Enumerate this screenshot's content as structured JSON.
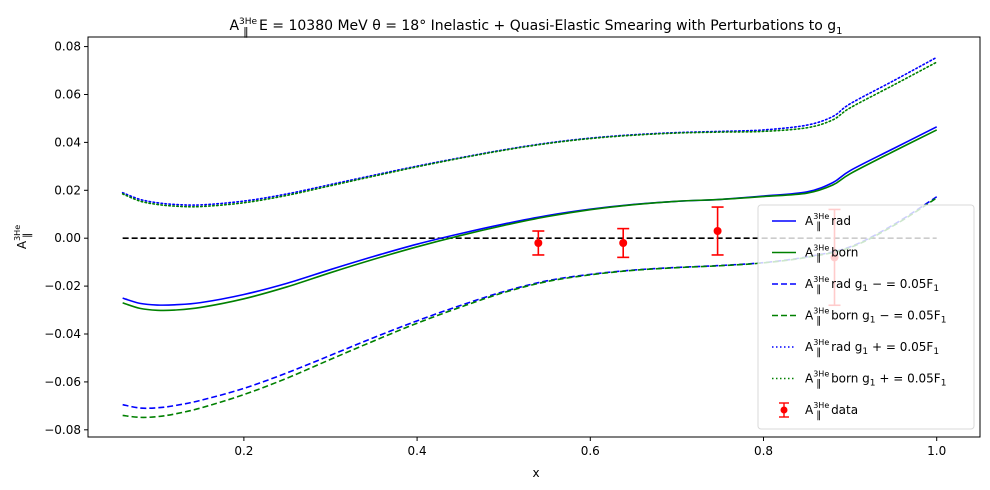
{
  "chart_data": {
    "type": "line",
    "title": {
      "base": "A",
      "sub": "‖",
      "sup": "3He",
      "rest": " E = 10380 MeV θ = 18° Inelastic + Quasi-Elastic Smearing with Perturbations to g",
      "tail_sub": "1"
    },
    "xlabel": "x",
    "ylabel": {
      "base": "A",
      "sub": "‖",
      "sup": "3He"
    },
    "xlim": [
      0.02,
      1.05
    ],
    "ylim": [
      -0.083,
      0.084
    ],
    "xticks": [
      0.2,
      0.4,
      0.6,
      0.8,
      1.0
    ],
    "xtick_labels": [
      "0.2",
      "0.4",
      "0.6",
      "0.8",
      "1.0"
    ],
    "yticks": [
      -0.08,
      -0.06,
      -0.04,
      -0.02,
      0.0,
      0.02,
      0.04,
      0.06,
      0.08
    ],
    "ytick_labels": [
      "−0.08",
      "−0.06",
      "−0.04",
      "−0.02",
      "0.00",
      "0.02",
      "0.04",
      "0.06",
      "0.08"
    ],
    "grid": false,
    "legend_position": "lower-right",
    "zero_line": {
      "x": [
        0.06,
        1.0
      ],
      "y": 0.0,
      "color": "#000000",
      "style": "dashed"
    },
    "series": [
      {
        "name": "A‖3He rad",
        "legend": {
          "base": "A",
          "sub": "‖",
          "sup": "3He",
          "text": " rad"
        },
        "color": "#0000ff",
        "style": "solid",
        "x": [
          0.06,
          0.08,
          0.1,
          0.12,
          0.15,
          0.2,
          0.25,
          0.3,
          0.35,
          0.4,
          0.45,
          0.5,
          0.55,
          0.6,
          0.65,
          0.7,
          0.75,
          0.8,
          0.85,
          0.88,
          0.9,
          0.95,
          1.0
        ],
        "y": [
          -0.025,
          -0.0272,
          -0.0279,
          -0.0278,
          -0.0269,
          -0.0235,
          -0.0188,
          -0.0131,
          -0.0076,
          -0.0025,
          0.0019,
          0.0059,
          0.0094,
          0.0121,
          0.0141,
          0.0154,
          0.0162,
          0.0176,
          0.0193,
          0.0232,
          0.0282,
          0.0374,
          0.0465
        ]
      },
      {
        "name": "A‖3He born",
        "legend": {
          "base": "A",
          "sub": "‖",
          "sup": "3He",
          "text": " born"
        },
        "color": "#008000",
        "style": "solid",
        "x": [
          0.06,
          0.08,
          0.1,
          0.12,
          0.15,
          0.2,
          0.25,
          0.3,
          0.35,
          0.4,
          0.45,
          0.5,
          0.55,
          0.6,
          0.65,
          0.7,
          0.75,
          0.8,
          0.85,
          0.88,
          0.9,
          0.95,
          1.0
        ],
        "y": [
          -0.027,
          -0.0293,
          -0.0301,
          -0.03,
          -0.0289,
          -0.0253,
          -0.0203,
          -0.0144,
          -0.0088,
          -0.0036,
          0.0011,
          0.0053,
          0.009,
          0.0119,
          0.014,
          0.0154,
          0.0162,
          0.0174,
          0.0188,
          0.0222,
          0.0269,
          0.0362,
          0.0452
        ]
      },
      {
        "name": "A‖3He rad g1−=0.05F1",
        "legend": {
          "base": "A",
          "sub": "‖",
          "sup": "3He",
          "text": " rad g",
          "text_sub": "1",
          "text2": " − = 0.05F",
          "text2_sub": "1"
        },
        "color": "#0000ff",
        "style": "dashed",
        "x": [
          0.06,
          0.08,
          0.1,
          0.12,
          0.15,
          0.2,
          0.25,
          0.3,
          0.35,
          0.4,
          0.45,
          0.5,
          0.55,
          0.6,
          0.65,
          0.7,
          0.75,
          0.8,
          0.85,
          0.9,
          0.95,
          1.0
        ],
        "y": [
          -0.0695,
          -0.0709,
          -0.0708,
          -0.0699,
          -0.0677,
          -0.0627,
          -0.0562,
          -0.0489,
          -0.0415,
          -0.0345,
          -0.0281,
          -0.0223,
          -0.0178,
          -0.0151,
          -0.0133,
          -0.0122,
          -0.0114,
          -0.0102,
          -0.0078,
          -0.0036,
          0.0056,
          0.0173
        ]
      },
      {
        "name": "A‖3He born g1−=0.05F1",
        "legend": {
          "base": "A",
          "sub": "‖",
          "sup": "3He",
          "text": " born g",
          "text_sub": "1",
          "text2": " − = 0.05F",
          "text2_sub": "1"
        },
        "color": "#008000",
        "style": "dashed",
        "x": [
          0.06,
          0.08,
          0.1,
          0.12,
          0.15,
          0.2,
          0.25,
          0.3,
          0.35,
          0.4,
          0.45,
          0.5,
          0.55,
          0.6,
          0.65,
          0.7,
          0.75,
          0.8,
          0.85,
          0.9,
          0.95,
          1.0
        ],
        "y": [
          -0.074,
          -0.0748,
          -0.0745,
          -0.0734,
          -0.0709,
          -0.0653,
          -0.0584,
          -0.0506,
          -0.0429,
          -0.0355,
          -0.0288,
          -0.0227,
          -0.0181,
          -0.0153,
          -0.0134,
          -0.0123,
          -0.0115,
          -0.0103,
          -0.008,
          -0.0039,
          0.0052,
          0.0168
        ]
      },
      {
        "name": "A‖3He rad g1+=0.05F1",
        "legend": {
          "base": "A",
          "sub": "‖",
          "sup": "3He",
          "text": " rad g",
          "text_sub": "1",
          "text2": " + = 0.05F",
          "text2_sub": "1"
        },
        "color": "#0000ff",
        "style": "dotted",
        "x": [
          0.06,
          0.08,
          0.1,
          0.12,
          0.15,
          0.2,
          0.25,
          0.3,
          0.35,
          0.4,
          0.45,
          0.5,
          0.55,
          0.6,
          0.65,
          0.7,
          0.75,
          0.8,
          0.85,
          0.88,
          0.9,
          0.95,
          1.0
        ],
        "y": [
          0.019,
          0.0162,
          0.0148,
          0.0141,
          0.0139,
          0.0155,
          0.0185,
          0.0224,
          0.0263,
          0.0301,
          0.0336,
          0.0369,
          0.0397,
          0.0418,
          0.0432,
          0.0441,
          0.0446,
          0.0452,
          0.0472,
          0.0508,
          0.0561,
          0.0657,
          0.0755
        ]
      },
      {
        "name": "A‖3He born g1+=0.05F1",
        "legend": {
          "base": "A",
          "sub": "‖",
          "sup": "3He",
          "text": " born g",
          "text_sub": "1",
          "text2": " + = 0.05F",
          "text2_sub": "1"
        },
        "color": "#008000",
        "style": "dotted",
        "x": [
          0.06,
          0.08,
          0.1,
          0.12,
          0.15,
          0.2,
          0.25,
          0.3,
          0.35,
          0.4,
          0.45,
          0.5,
          0.55,
          0.6,
          0.65,
          0.7,
          0.75,
          0.8,
          0.85,
          0.88,
          0.9,
          0.95,
          1.0
        ],
        "y": [
          0.0185,
          0.0155,
          0.0141,
          0.0134,
          0.0132,
          0.0148,
          0.0179,
          0.0219,
          0.0259,
          0.0298,
          0.0334,
          0.0367,
          0.0395,
          0.0416,
          0.043,
          0.0439,
          0.0443,
          0.0446,
          0.0461,
          0.0494,
          0.0544,
          0.0639,
          0.0735
        ]
      }
    ],
    "points": {
      "name": "A‖3He data",
      "legend": {
        "base": "A",
        "sub": "‖",
        "sup": "3He",
        "text": " data"
      },
      "color": "#ff0000",
      "x": [
        0.54,
        0.638,
        0.747,
        0.882
      ],
      "y": [
        -0.002,
        -0.002,
        0.003,
        -0.008
      ],
      "yerr": [
        0.005,
        0.006,
        0.01,
        0.02
      ]
    }
  }
}
